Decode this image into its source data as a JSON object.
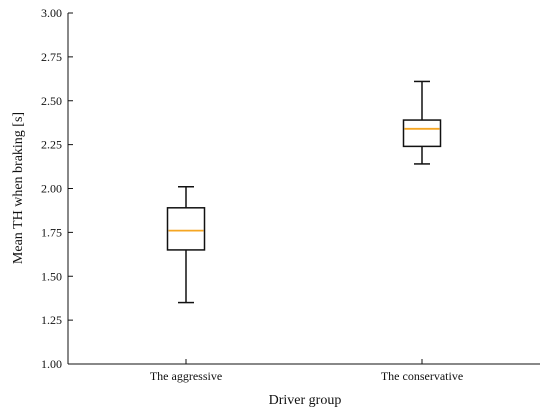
{
  "chart_data": {
    "type": "box",
    "title": "",
    "xlabel": "Driver group",
    "ylabel": "Mean TH when braking [s]",
    "ylim": [
      1.0,
      3.0
    ],
    "yticks": [
      "1.00",
      "1.25",
      "1.50",
      "1.75",
      "2.00",
      "2.25",
      "2.50",
      "2.75",
      "3.00"
    ],
    "grid": false,
    "categories": [
      "The aggressive",
      "The conservative"
    ],
    "boxes": [
      {
        "category": "The aggressive",
        "whisker_low": 1.35,
        "q1": 1.65,
        "median": 1.76,
        "q3": 1.89,
        "whisker_high": 2.01
      },
      {
        "category": "The conservative",
        "whisker_low": 2.14,
        "q1": 2.24,
        "median": 2.34,
        "q3": 2.39,
        "whisker_high": 2.61
      }
    ],
    "colors": {
      "box": "#111111",
      "median": "#f5a623",
      "axis": "#111111"
    }
  }
}
